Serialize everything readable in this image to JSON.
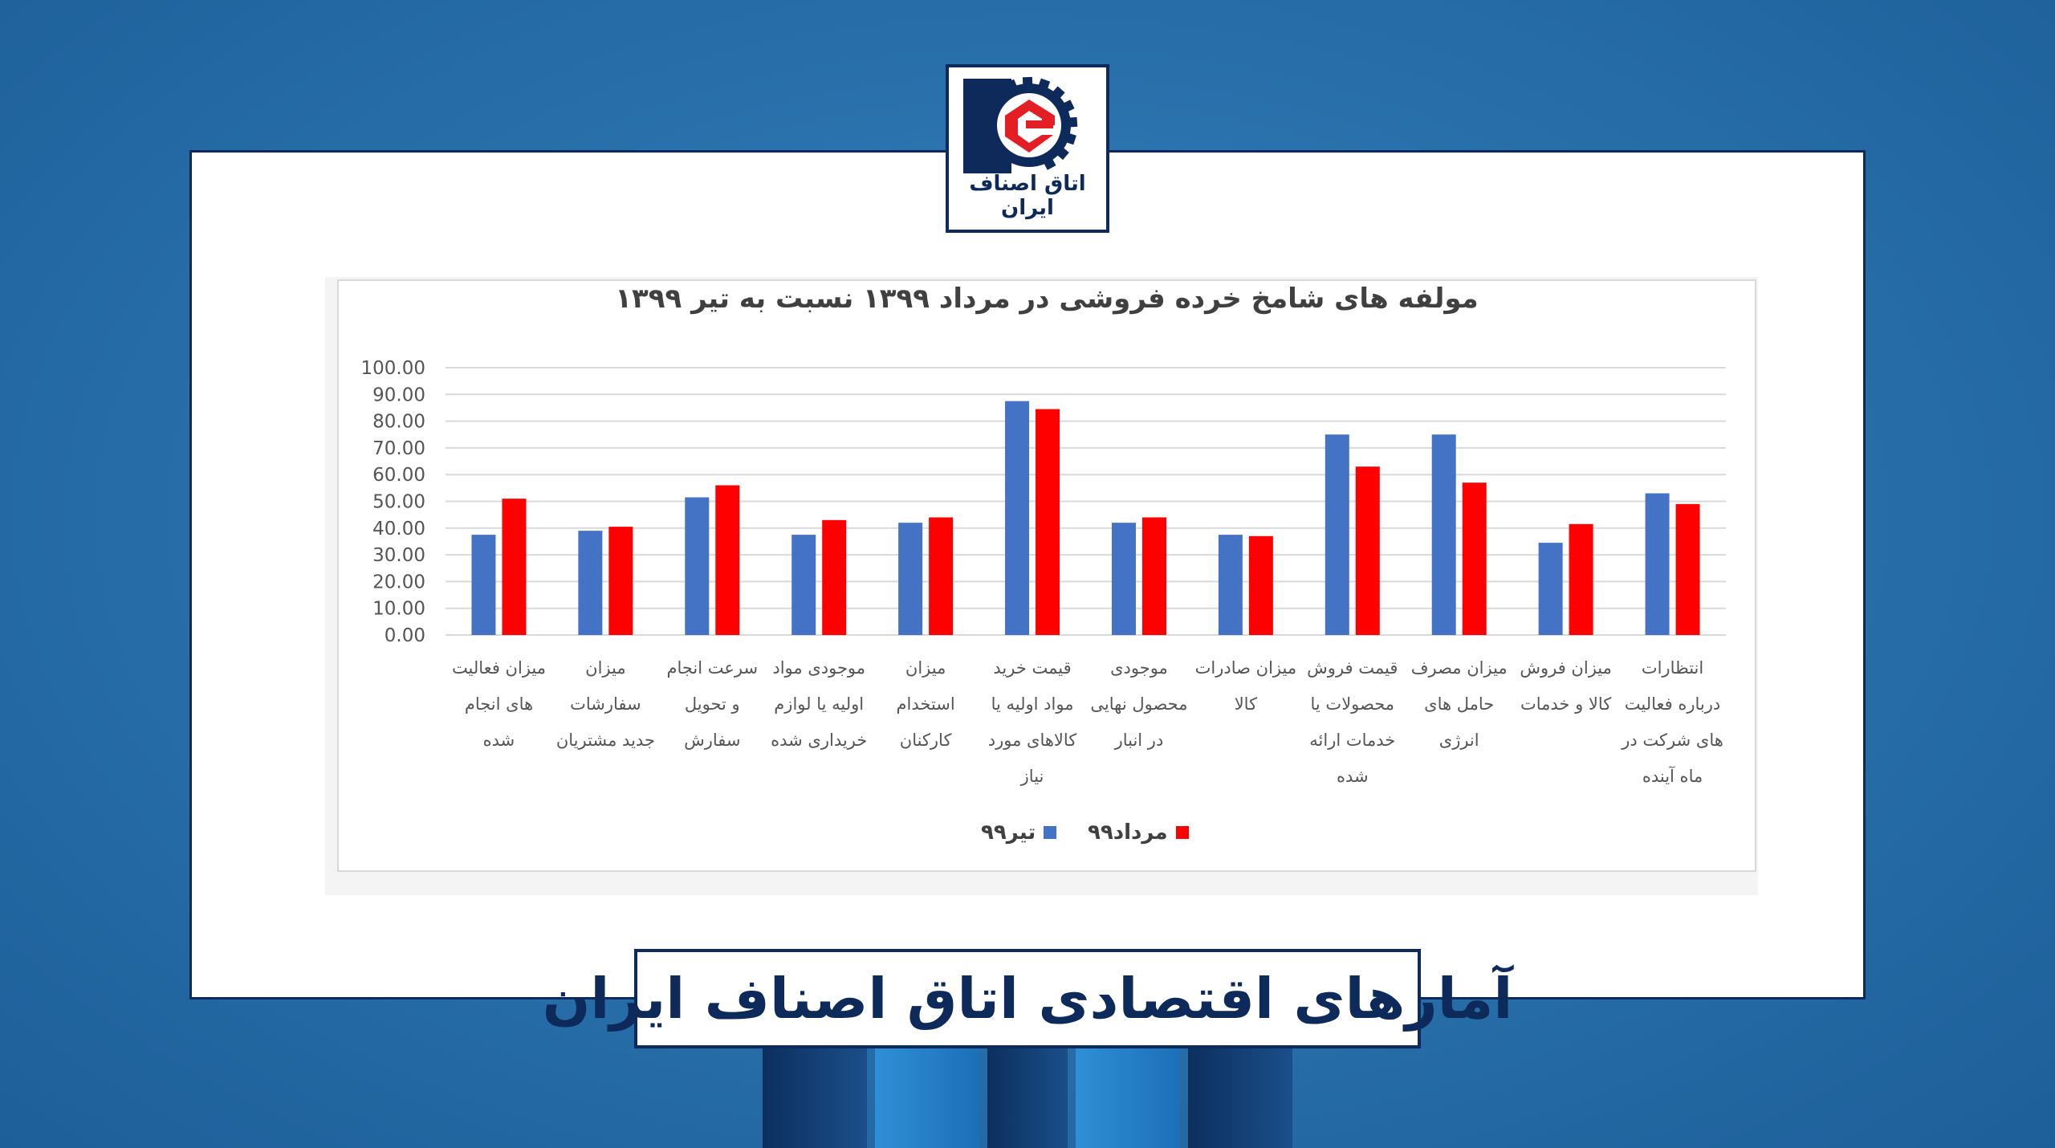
{
  "logo": {
    "text": "اتاق اصناف ایران"
  },
  "banner": {
    "text": "آمارهای اقتصادی اتاق اصناف ایران"
  },
  "colors": {
    "frame_border": "#0e2a5a",
    "series_tir": "#4472c4",
    "series_mordad": "#ff0000",
    "logo_red": "#e31e24"
  },
  "chart_data": {
    "type": "bar",
    "title": "مولفه های شامخ خرده فروشی در مرداد ۱۳۹۹ نسبت به تیر ۱۳۹۹",
    "ylim": [
      0,
      100
    ],
    "y_ticks": [
      "100.00",
      "90.00",
      "80.00",
      "70.00",
      "60.00",
      "50.00",
      "40.00",
      "30.00",
      "20.00",
      "10.00",
      "0.00"
    ],
    "grid": true,
    "legend_position": "bottom",
    "categories": [
      "میزان فعالیت های انجام شده",
      "میزان سفارشات جدید مشتریان",
      "سرعت انجام و تحویل سفارش",
      "موجودی مواد اولیه یا لوازم خریداری شده",
      "میزان استخدام کارکنان",
      "قیمت خرید مواد اولیه یا کالاهای مورد نیاز",
      "موجودی محصول نهایی در انبار",
      "میزان صادرات کالا",
      "قیمت فروش محصولات یا خدمات ارائه شده",
      "میزان مصرف حامل های انرژی",
      "میزان فروش کالا و خدمات",
      "انتظارات درباره فعالیت های شرکت در ماه آینده"
    ],
    "series": [
      {
        "name": "تیر۹۹",
        "values": [
          37.5,
          39,
          51.5,
          37.5,
          42,
          87.5,
          42,
          37.5,
          75,
          75,
          34.5,
          53
        ]
      },
      {
        "name": "مرداد۹۹",
        "values": [
          51,
          40.5,
          56,
          43,
          44,
          84.5,
          44,
          37,
          63,
          57,
          41.5,
          49
        ]
      }
    ]
  }
}
